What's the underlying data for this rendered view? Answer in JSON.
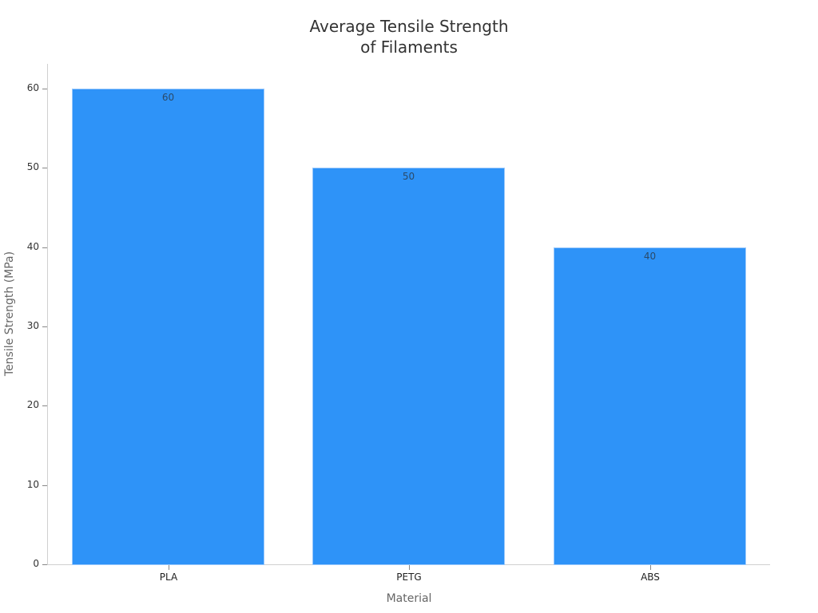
{
  "chart_data": {
    "type": "bar",
    "title": "Average Tensile Strength of Filaments",
    "title_lines": [
      "Average Tensile Strength",
      "of Filaments"
    ],
    "xlabel": "Material",
    "ylabel": "Tensile Strength (MPa)",
    "categories": [
      "PLA",
      "PETG",
      "ABS"
    ],
    "values": [
      60,
      50,
      40
    ],
    "ylim": [
      0,
      63
    ],
    "yticks": [
      0,
      10,
      20,
      30,
      40,
      50,
      60
    ],
    "grid": false,
    "legend": null,
    "bar_color": "#2e93f8"
  }
}
